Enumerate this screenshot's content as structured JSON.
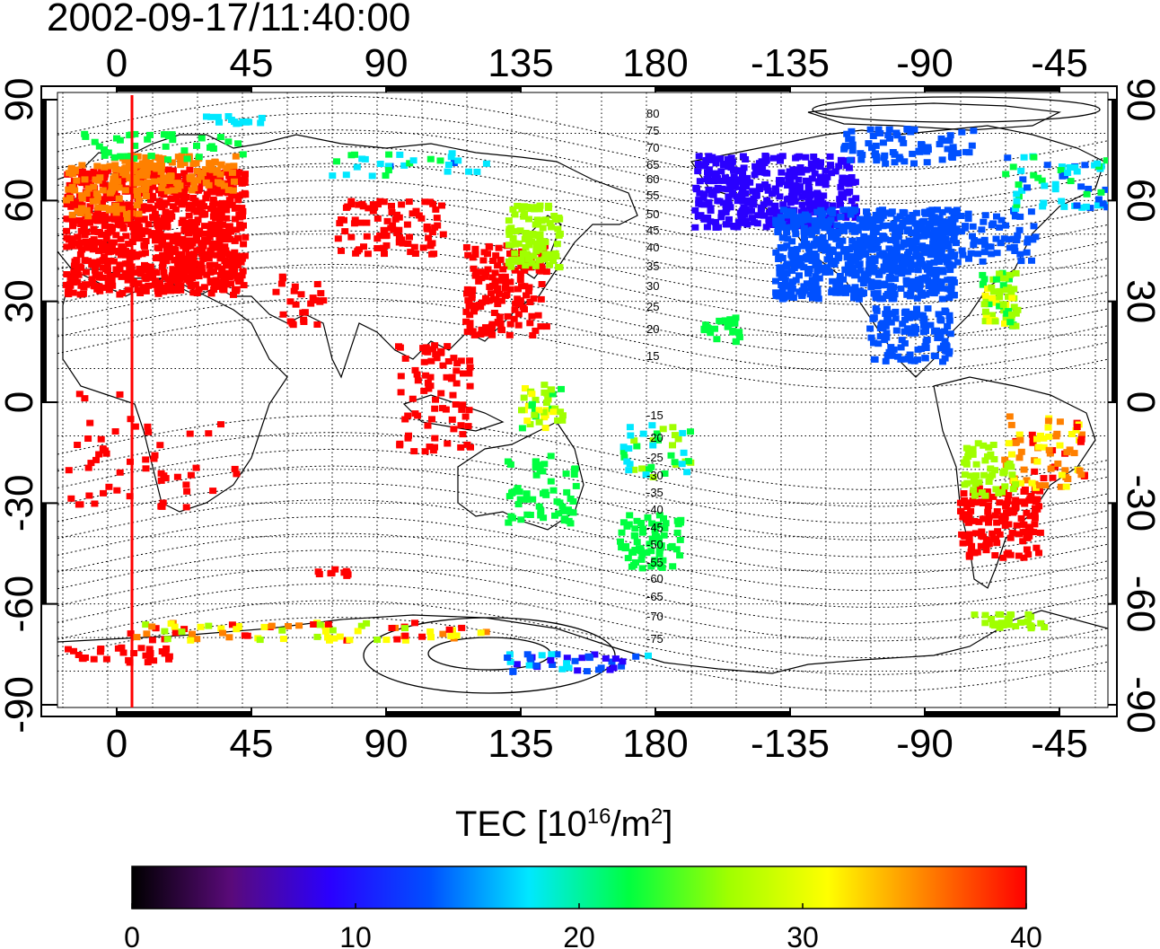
{
  "title": "2002-09-17/11:40:00",
  "map": {
    "lon_top_labels": [
      "0",
      "45",
      "90",
      "135",
      "180",
      "-135",
      "-90",
      "-45"
    ],
    "lon_bottom_labels": [
      "0",
      "45",
      "90",
      "135",
      "180",
      "-135",
      "-90",
      "-45"
    ],
    "lat_labels": [
      "90",
      "60",
      "30",
      "0",
      "-30",
      "-60",
      "-90"
    ],
    "contour_labels_north": [
      "80",
      "75",
      "70",
      "65",
      "60",
      "55",
      "50",
      "45",
      "40",
      "35",
      "30",
      "25",
      "20",
      "15"
    ],
    "contour_labels_south": [
      "-15",
      "-20",
      "-25",
      "-30",
      "-35",
      "-40",
      "-45",
      "-50",
      "-55",
      "-60",
      "-65",
      "-70",
      "-75"
    ],
    "subsolar_meridian_color": "#ff0000"
  },
  "colorbar": {
    "title_prefix": "TEC  [10",
    "title_exp1": "16",
    "title_mid": "/m",
    "title_exp2": "2",
    "title_suffix": "]",
    "ticks": [
      "0",
      "10",
      "20",
      "30",
      "40"
    ],
    "range": [
      0,
      40
    ],
    "colors": [
      "#000000",
      "#5a0a7a",
      "#2a00ff",
      "#0050ff",
      "#00e8ff",
      "#00ff40",
      "#a0ff00",
      "#ffff00",
      "#ff8000",
      "#ff0000"
    ]
  }
}
